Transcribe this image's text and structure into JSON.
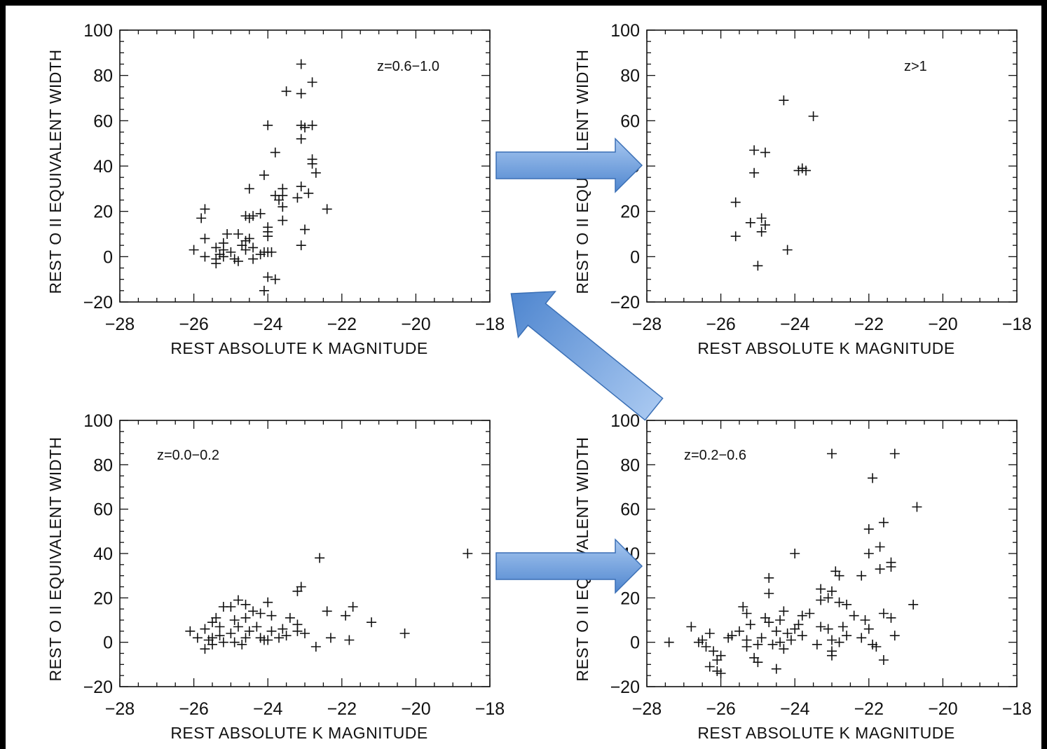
{
  "figure": {
    "colors": {
      "background": "#ffffff",
      "ink": "#111111",
      "arrow_fill_top": "#a7c7f0",
      "arrow_fill_bottom": "#4f86cf",
      "arrow_stroke": "#3a6fb5"
    },
    "arrows": [
      "arrow-right-top",
      "arrow-diagonal-up-left",
      "arrow-right-bottom"
    ]
  },
  "chart_data": [
    {
      "type": "scatter",
      "panel": "top-left",
      "annotation": "z=0.6−1.0",
      "xlabel": "REST ABSOLUTE K MAGNITUDE",
      "ylabel": "REST O II EQUIVALENT WIDTH",
      "xlim": [
        -28,
        -18
      ],
      "ylim": [
        -20,
        100
      ],
      "xticks": [
        -28,
        -26,
        -24,
        -22,
        -20,
        -18
      ],
      "yticks": [
        -20,
        0,
        20,
        40,
        60,
        80,
        100
      ],
      "xtick_labels": [
        "−28",
        "−26",
        "−24",
        "−22",
        "−20",
        "−18"
      ],
      "ytick_labels": [
        "−20",
        "0",
        "20",
        "40",
        "60",
        "80",
        "100"
      ],
      "series": [
        {
          "marker": "+",
          "points": [
            [
              -23.1,
              85
            ],
            [
              -22.8,
              77
            ],
            [
              -23.5,
              73
            ],
            [
              -23.1,
              72
            ],
            [
              -24.0,
              58
            ],
            [
              -23.1,
              58
            ],
            [
              -22.8,
              58
            ],
            [
              -23.0,
              57
            ],
            [
              -23.1,
              52
            ],
            [
              -23.8,
              46
            ],
            [
              -22.8,
              43
            ],
            [
              -22.8,
              41
            ],
            [
              -22.7,
              37
            ],
            [
              -24.1,
              36
            ],
            [
              -23.1,
              31
            ],
            [
              -23.6,
              30
            ],
            [
              -24.5,
              30
            ],
            [
              -22.9,
              28
            ],
            [
              -23.8,
              27
            ],
            [
              -23.6,
              27
            ],
            [
              -23.2,
              26
            ],
            [
              -23.7,
              25
            ],
            [
              -23.6,
              22
            ],
            [
              -22.4,
              21
            ],
            [
              -25.7,
              21
            ],
            [
              -24.2,
              19
            ],
            [
              -24.4,
              18
            ],
            [
              -24.6,
              18
            ],
            [
              -25.8,
              17
            ],
            [
              -24.5,
              17
            ],
            [
              -23.6,
              16
            ],
            [
              -24.0,
              13
            ],
            [
              -24.0,
              11
            ],
            [
              -23.0,
              12
            ],
            [
              -24.8,
              10
            ],
            [
              -25.1,
              10
            ],
            [
              -24.0,
              9
            ],
            [
              -25.7,
              8
            ],
            [
              -24.5,
              8
            ],
            [
              -24.6,
              7
            ],
            [
              -25.2,
              6
            ],
            [
              -24.7,
              5
            ],
            [
              -23.1,
              5
            ],
            [
              -25.4,
              4
            ],
            [
              -24.4,
              4
            ],
            [
              -26.0,
              3
            ],
            [
              -25.2,
              3
            ],
            [
              -24.6,
              3
            ],
            [
              -24.1,
              2
            ],
            [
              -25.0,
              2
            ],
            [
              -24.0,
              2
            ],
            [
              -23.9,
              2
            ],
            [
              -25.3,
              1
            ],
            [
              -24.2,
              1
            ],
            [
              -25.2,
              0
            ],
            [
              -25.7,
              0
            ],
            [
              -25.4,
              -1
            ],
            [
              -24.9,
              -1
            ],
            [
              -24.8,
              -2
            ],
            [
              -25.4,
              -3
            ],
            [
              -24.4,
              -1
            ],
            [
              -24.0,
              -9
            ],
            [
              -23.8,
              -10
            ],
            [
              -24.1,
              -15
            ]
          ]
        }
      ]
    },
    {
      "type": "scatter",
      "panel": "top-right",
      "annotation": "z>1",
      "xlabel": "REST ABSOLUTE K MAGNITUDE",
      "ylabel": "REST O II EQUIVALENT WIDTH",
      "xlim": [
        -28,
        -18
      ],
      "ylim": [
        -20,
        100
      ],
      "xticks": [
        -28,
        -26,
        -24,
        -22,
        -20,
        -18
      ],
      "yticks": [
        -20,
        0,
        20,
        40,
        60,
        80,
        100
      ],
      "xtick_labels": [
        "−28",
        "−26",
        "−24",
        "−22",
        "−20",
        "−18"
      ],
      "ytick_labels": [
        "−20",
        "0",
        "20",
        "40",
        "60",
        "80",
        "100"
      ],
      "series": [
        {
          "marker": "+",
          "points": [
            [
              -24.3,
              69
            ],
            [
              -23.5,
              62
            ],
            [
              -25.1,
              47
            ],
            [
              -24.8,
              46
            ],
            [
              -25.1,
              37
            ],
            [
              -23.9,
              38
            ],
            [
              -23.8,
              39
            ],
            [
              -23.7,
              38
            ],
            [
              -25.6,
              24
            ],
            [
              -24.9,
              17
            ],
            [
              -25.2,
              15
            ],
            [
              -24.8,
              14
            ],
            [
              -24.9,
              11
            ],
            [
              -25.6,
              9
            ],
            [
              -24.2,
              3
            ],
            [
              -25.0,
              -4
            ]
          ]
        }
      ]
    },
    {
      "type": "scatter",
      "panel": "bottom-left",
      "annotation": "z=0.0−0.2",
      "xlabel": "REST ABSOLUTE K MAGNITUDE",
      "ylabel": "REST O II EQUIVALENT WIDTH",
      "xlim": [
        -28,
        -18
      ],
      "ylim": [
        -20,
        100
      ],
      "xticks": [
        -28,
        -26,
        -24,
        -22,
        -20,
        -18
      ],
      "yticks": [
        -20,
        0,
        20,
        40,
        60,
        80,
        100
      ],
      "xtick_labels": [
        "−28",
        "−26",
        "−24",
        "−22",
        "−20",
        "−18"
      ],
      "ytick_labels": [
        "−20",
        "0",
        "20",
        "40",
        "60",
        "80",
        "100"
      ],
      "series": [
        {
          "marker": "+",
          "points": [
            [
              -18.6,
              40
            ],
            [
              -22.6,
              38
            ],
            [
              -23.1,
              25
            ],
            [
              -23.2,
              23
            ],
            [
              -24.8,
              19
            ],
            [
              -24.0,
              18
            ],
            [
              -25.0,
              16
            ],
            [
              -24.6,
              17
            ],
            [
              -25.2,
              16
            ],
            [
              -21.7,
              16
            ],
            [
              -22.4,
              14
            ],
            [
              -24.4,
              14
            ],
            [
              -24.2,
              13
            ],
            [
              -21.9,
              12
            ],
            [
              -23.9,
              12
            ],
            [
              -23.4,
              11
            ],
            [
              -25.4,
              11
            ],
            [
              -24.6,
              11
            ],
            [
              -24.9,
              10
            ],
            [
              -21.2,
              9
            ],
            [
              -25.5,
              9
            ],
            [
              -25.3,
              7
            ],
            [
              -23.2,
              8
            ],
            [
              -24.8,
              7
            ],
            [
              -24.3,
              7
            ],
            [
              -25.7,
              6
            ],
            [
              -26.1,
              5
            ],
            [
              -23.6,
              6
            ],
            [
              -24.5,
              5
            ],
            [
              -23.9,
              5
            ],
            [
              -23.2,
              5
            ],
            [
              -25.0,
              4
            ],
            [
              -25.3,
              3
            ],
            [
              -20.3,
              4
            ],
            [
              -23.0,
              4
            ],
            [
              -23.5,
              3
            ],
            [
              -24.2,
              2
            ],
            [
              -24.6,
              2
            ],
            [
              -25.5,
              2
            ],
            [
              -22.3,
              2
            ],
            [
              -25.9,
              2
            ],
            [
              -24.0,
              1
            ],
            [
              -21.8,
              1
            ],
            [
              -25.6,
              1
            ],
            [
              -24.9,
              0
            ],
            [
              -25.2,
              0
            ],
            [
              -24.7,
              -1
            ],
            [
              -25.5,
              -1
            ],
            [
              -22.7,
              -2
            ],
            [
              -25.7,
              -3
            ],
            [
              -24.1,
              1
            ],
            [
              -23.7,
              2
            ]
          ]
        }
      ]
    },
    {
      "type": "scatter",
      "panel": "bottom-right",
      "annotation": "z=0.2−0.6",
      "xlabel": "REST ABSOLUTE K MAGNITUDE",
      "ylabel": "REST O II EQUIVALENT WIDTH",
      "xlim": [
        -28,
        -18
      ],
      "ylim": [
        -20,
        100
      ],
      "xticks": [
        -28,
        -26,
        -24,
        -22,
        -20,
        -18
      ],
      "yticks": [
        -20,
        0,
        20,
        40,
        60,
        80,
        100
      ],
      "xtick_labels": [
        "−28",
        "−26",
        "−24",
        "−22",
        "−20",
        "−18"
      ],
      "ytick_labels": [
        "−20",
        "0",
        "20",
        "40",
        "60",
        "80",
        "100"
      ],
      "series": [
        {
          "marker": "+",
          "points": [
            [
              -23.0,
              85
            ],
            [
              -21.3,
              85
            ],
            [
              -21.9,
              74
            ],
            [
              -20.7,
              61
            ],
            [
              -21.6,
              54
            ],
            [
              -22.0,
              51
            ],
            [
              -21.7,
              43
            ],
            [
              -24.0,
              40
            ],
            [
              -22.0,
              40
            ],
            [
              -21.4,
              36
            ],
            [
              -21.4,
              34
            ],
            [
              -21.7,
              33
            ],
            [
              -22.9,
              32
            ],
            [
              -22.8,
              30
            ],
            [
              -22.2,
              30
            ],
            [
              -24.7,
              29
            ],
            [
              -23.3,
              24
            ],
            [
              -23.0,
              23
            ],
            [
              -24.7,
              22
            ],
            [
              -23.1,
              20
            ],
            [
              -22.8,
              18
            ],
            [
              -23.3,
              19
            ],
            [
              -22.6,
              17
            ],
            [
              -20.8,
              17
            ],
            [
              -25.4,
              16
            ],
            [
              -24.3,
              14
            ],
            [
              -25.3,
              13
            ],
            [
              -23.6,
              13
            ],
            [
              -23.8,
              12
            ],
            [
              -22.4,
              12
            ],
            [
              -21.6,
              13
            ],
            [
              -21.4,
              11
            ],
            [
              -24.8,
              11
            ],
            [
              -24.4,
              10
            ],
            [
              -22.1,
              10
            ],
            [
              -24.7,
              9
            ],
            [
              -25.2,
              8
            ],
            [
              -23.9,
              8
            ],
            [
              -23.3,
              7
            ],
            [
              -22.7,
              7
            ],
            [
              -26.8,
              7
            ],
            [
              -24.0,
              6
            ],
            [
              -23.1,
              6
            ],
            [
              -22.0,
              6
            ],
            [
              -25.5,
              5
            ],
            [
              -24.5,
              5
            ],
            [
              -24.2,
              4
            ],
            [
              -26.3,
              4
            ],
            [
              -25.7,
              3
            ],
            [
              -23.8,
              3
            ],
            [
              -22.6,
              3
            ],
            [
              -21.3,
              3
            ],
            [
              -25.8,
              2
            ],
            [
              -24.9,
              2
            ],
            [
              -24.1,
              1
            ],
            [
              -22.2,
              2
            ],
            [
              -26.5,
              1
            ],
            [
              -25.3,
              1
            ],
            [
              -24.4,
              0
            ],
            [
              -23.0,
              1
            ],
            [
              -27.4,
              0
            ],
            [
              -26.6,
              0
            ],
            [
              -25.0,
              -1
            ],
            [
              -24.6,
              -1
            ],
            [
              -23.4,
              -1
            ],
            [
              -22.8,
              0
            ],
            [
              -21.9,
              -1
            ],
            [
              -26.4,
              -2
            ],
            [
              -25.3,
              -2
            ],
            [
              -24.3,
              -3
            ],
            [
              -21.8,
              -2
            ],
            [
              -26.2,
              -4
            ],
            [
              -23.0,
              -4
            ],
            [
              -26.0,
              -6
            ],
            [
              -25.1,
              -7
            ],
            [
              -23.0,
              -6
            ],
            [
              -26.1,
              -8
            ],
            [
              -25.0,
              -9
            ],
            [
              -21.6,
              -8
            ],
            [
              -26.3,
              -11
            ],
            [
              -26.1,
              -13
            ],
            [
              -24.5,
              -12
            ],
            [
              -26.0,
              -14
            ]
          ]
        }
      ]
    }
  ]
}
